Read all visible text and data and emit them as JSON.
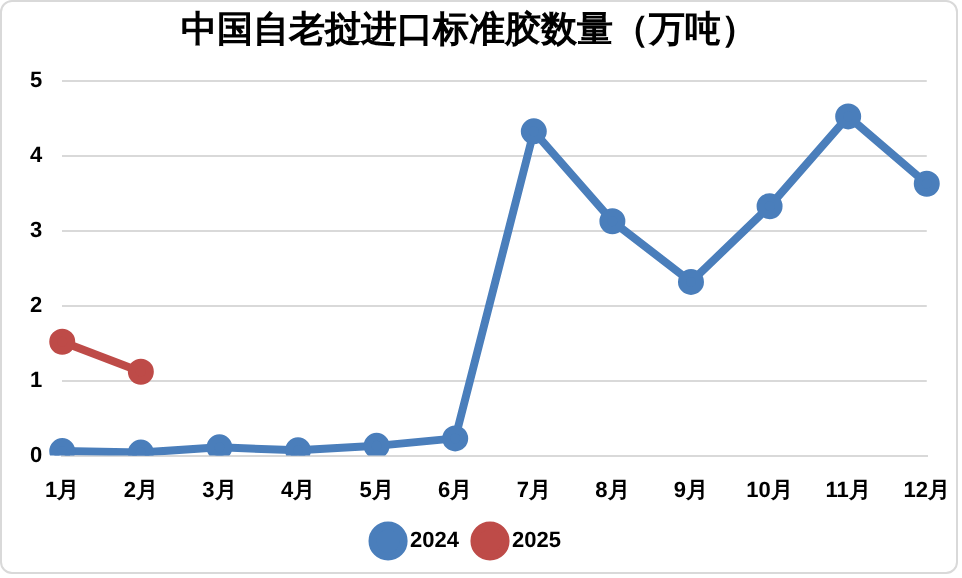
{
  "chart_data": {
    "type": "line",
    "title": "中国自老挝进口标准胶数量（万吨）",
    "categories": [
      "1月",
      "2月",
      "3月",
      "4月",
      "5月",
      "6月",
      "7月",
      "8月",
      "9月",
      "10月",
      "11月",
      "12月"
    ],
    "series": [
      {
        "name": "2024",
        "color": "#4a7ebb",
        "values": [
          0.06,
          0.04,
          0.11,
          0.07,
          0.13,
          0.23,
          4.33,
          3.13,
          2.32,
          3.33,
          4.53,
          3.63
        ]
      },
      {
        "name": "2025",
        "color": "#be4b48",
        "values": [
          1.52,
          1.12,
          null,
          null,
          null,
          null,
          null,
          null,
          null,
          null,
          null,
          null
        ]
      }
    ],
    "ylim": [
      0,
      5
    ],
    "yticks": [
      0,
      1,
      2,
      3,
      4,
      5
    ],
    "grid": "y",
    "legend": "bottom",
    "marker": "circle",
    "line_style": "solid"
  }
}
